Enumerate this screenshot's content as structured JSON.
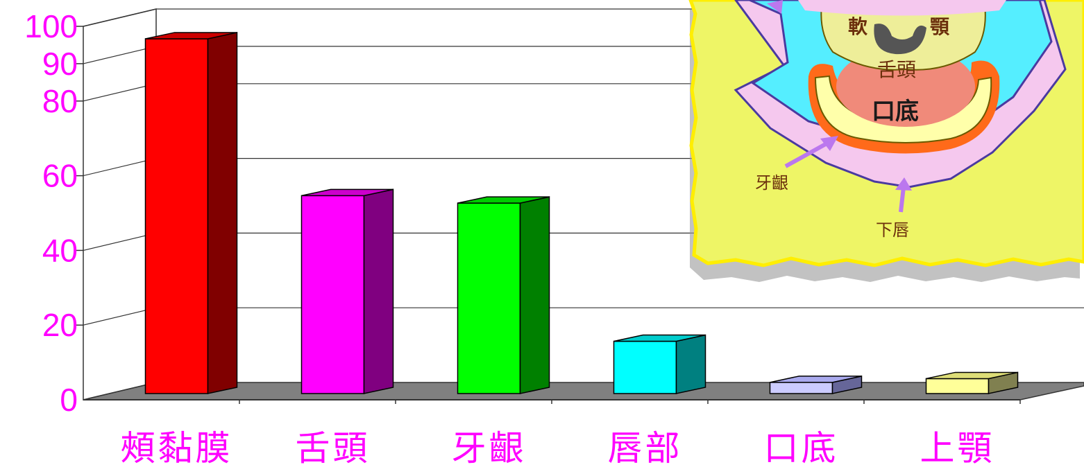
{
  "chart_data": {
    "type": "bar",
    "categories": [
      "頰黏膜",
      "舌頭",
      "牙齦",
      "唇部",
      "口底",
      "上顎"
    ],
    "values": [
      95,
      53,
      51,
      14,
      3,
      4
    ],
    "ylim": [
      0,
      100
    ],
    "yticks": [
      "0",
      "20",
      "40",
      "60",
      "80",
      "90",
      "100"
    ],
    "ytick_values": [
      0,
      20,
      40,
      60,
      80,
      90,
      100
    ],
    "grid": true,
    "style": "3d-bar",
    "colors": [
      {
        "front": "#ff0000",
        "side": "#800000",
        "top": "#cc0000"
      },
      {
        "front": "#ff00ff",
        "side": "#800080",
        "top": "#cc00cc"
      },
      {
        "front": "#00ff00",
        "side": "#008000",
        "top": "#00cc00"
      },
      {
        "front": "#00ffff",
        "side": "#008080",
        "top": "#00cccc"
      },
      {
        "front": "#ccccff",
        "side": "#666699",
        "top": "#aaaaee"
      },
      {
        "front": "#ffff99",
        "side": "#808050",
        "top": "#dddd77"
      }
    ]
  },
  "illustration": {
    "labels": {
      "soft_palate_1": "軟",
      "soft_palate_2": "顎",
      "tongue": "舌頭",
      "floor": "口底",
      "gum": "牙齦",
      "lower_lip": "下唇"
    },
    "colors": {
      "paper": "#eef566",
      "paper_edge": "#ffee00",
      "cavity": "#55eeff",
      "lip": "#f5c8ee",
      "tongue": "#f08a7a",
      "gum": "#ff6a1a",
      "teeth": "#ffffaa",
      "palate": "#eeee99",
      "arrow": "#bb77ee"
    }
  }
}
